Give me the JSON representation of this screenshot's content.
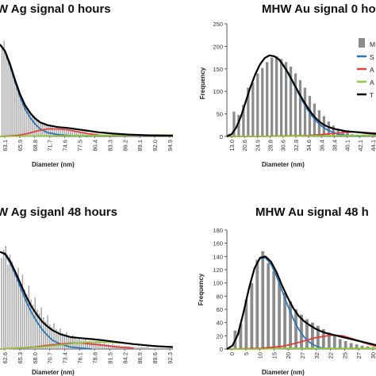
{
  "chart_data": [
    {
      "type": "bar",
      "title": "W Ag signal 0 hours",
      "xlabel": "Diameter (nm)",
      "ylabel": "",
      "ylim": [
        0,
        120
      ],
      "ticks": [
        "63.1",
        "65.9",
        "68.8",
        "71.7",
        "74.6",
        "77.5",
        "80.4",
        "83.3",
        "86.2",
        "89.1",
        "92.0",
        "94.9"
      ],
      "x": [
        60.9,
        61.3,
        61.7,
        62.1,
        62.5,
        62.9,
        63.3,
        63.7,
        64.1,
        64.5,
        64.9,
        65.3,
        65.7,
        66.1,
        66.5,
        66.9,
        67.3,
        67.7,
        68.1,
        68.5,
        68.9,
        69.3,
        69.7,
        70.1,
        70.5,
        70.9,
        71.3,
        71.7,
        72.1,
        72.5,
        72.9,
        73.3,
        73.7,
        74.1,
        74.5,
        74.9,
        75.3,
        75.7,
        76.1,
        76.5,
        76.9,
        77.3,
        77.7,
        78.1,
        78.5,
        78.9,
        79.3,
        79.7,
        80.1,
        80.5,
        80.9,
        81.3,
        81.7,
        82.1,
        82.5,
        82.9,
        83.3,
        83.7,
        84.1,
        84.5,
        84.9,
        85.3,
        85.7,
        86.1,
        86.5,
        86.9,
        87.3,
        87.7,
        88.1,
        88.5,
        88.9,
        89.3,
        89.7,
        90.1,
        90.5,
        90.9,
        91.3,
        91.7,
        92.1,
        92.5,
        92.9,
        93.3,
        93.7,
        94.1,
        94.5
      ],
      "series": [
        {
          "type": "bar",
          "color": "#a3a3a3",
          "values": [
            96,
            102,
            88,
            80,
            76,
            68,
            60,
            55,
            50,
            45,
            40,
            36,
            33,
            30,
            27,
            24,
            22,
            20,
            18,
            16,
            15,
            14,
            13,
            12,
            11,
            10,
            9,
            9,
            8,
            8,
            7,
            7,
            6,
            6,
            6,
            5,
            5,
            5,
            4,
            4,
            4,
            4,
            3,
            3,
            3,
            3,
            3,
            3,
            2,
            2,
            2,
            2,
            2,
            2,
            2,
            2,
            2,
            2,
            1,
            1,
            1,
            1,
            1,
            1,
            1,
            1,
            1,
            1,
            1,
            1,
            1,
            1,
            1,
            1,
            1,
            1,
            1,
            1,
            1,
            1,
            1,
            1,
            1,
            1,
            1
          ]
        },
        {
          "type": "line",
          "color": "#2e75b6",
          "x": [
            60.5,
            61.5,
            62.5,
            63.5,
            64.5,
            65.5,
            66.5,
            67.5,
            68.5,
            70,
            72,
            74,
            76,
            78
          ],
          "values": [
            98,
            90,
            75,
            58,
            42,
            29,
            20,
            13,
            8,
            4,
            2,
            1,
            0.5,
            0
          ]
        },
        {
          "type": "line",
          "color": "#e04040",
          "x": [
            60.5,
            64,
            66,
            68,
            70,
            72,
            74,
            76,
            78,
            80,
            82
          ],
          "values": [
            0,
            1,
            3,
            6,
            8,
            8,
            7,
            5,
            3,
            1.5,
            0.5
          ]
        },
        {
          "type": "line",
          "color": "#8dc63f",
          "x": [
            60.5,
            70,
            80,
            90,
            94.9
          ],
          "values": [
            0,
            0.5,
            1,
            1.5,
            1.5
          ]
        },
        {
          "type": "line",
          "color": "#000000",
          "x": [
            60.5,
            61.5,
            62.5,
            63.5,
            64.5,
            65.5,
            66.5,
            67.5,
            68.5,
            70,
            72,
            74,
            76,
            78,
            80,
            83,
            86,
            90,
            94.9
          ],
          "values": [
            98,
            91,
            77,
            60,
            45,
            33,
            25,
            19,
            15,
            12,
            10,
            9,
            7.5,
            6,
            4.5,
            3,
            2,
            1.2,
            0.8
          ]
        }
      ]
    },
    {
      "type": "bar",
      "title": "MHW Au signal 0 ho",
      "xlabel": "Diameter (nm)",
      "ylabel": "Frequency",
      "ylim": [
        0,
        250
      ],
      "yticks": [
        "0",
        "50",
        "100",
        "150",
        "200",
        "250"
      ],
      "ticks": [
        "13.0",
        "20.6",
        "24.9",
        "28.8",
        "30.6",
        "32.8",
        "34.6",
        "36.4",
        "38.4",
        "40.1",
        "42.1",
        "44.1"
      ],
      "x": [
        13.5,
        14.5,
        15.5,
        16.5,
        17.5,
        18.5,
        19.5,
        20.5,
        21.5,
        22.5,
        23.5,
        24.5,
        25.5,
        26.5,
        27.5,
        28.5,
        29.5,
        30.5,
        31.5,
        32.5,
        33.5,
        34.5,
        35.5,
        36.5,
        37.5,
        38.5,
        39.5,
        40.5,
        41.5,
        42.5,
        43.5
      ],
      "series": [
        {
          "name": "M",
          "type": "bar",
          "color": "#8c8c8c",
          "values": [
            6,
            55,
            48,
            70,
            108,
            120,
            140,
            152,
            165,
            175,
            178,
            172,
            165,
            155,
            140,
            125,
            108,
            90,
            73,
            58,
            45,
            33,
            24,
            17,
            12,
            8,
            5,
            4,
            3,
            2,
            1
          ]
        },
        {
          "name": "S",
          "type": "line",
          "color": "#2e75b6",
          "x": [
            13,
            14,
            15,
            16,
            17,
            18,
            19,
            20,
            21,
            22,
            23,
            24,
            25,
            26,
            27,
            28,
            29,
            30,
            31,
            32,
            33,
            34,
            35,
            36,
            37,
            38,
            39,
            40,
            41
          ],
          "values": [
            0,
            5,
            20,
            45,
            78,
            110,
            138,
            160,
            174,
            180,
            178,
            170,
            156,
            138,
            118,
            98,
            78,
            60,
            45,
            33,
            23,
            16,
            11,
            7,
            4,
            3,
            2,
            1,
            0
          ]
        },
        {
          "name": "A",
          "type": "line",
          "color": "#e04040",
          "x": [
            13,
            20,
            25,
            30,
            33,
            36,
            38,
            40,
            42,
            44.5
          ],
          "values": [
            0,
            0,
            1,
            2,
            4,
            7,
            9,
            10,
            9,
            7
          ]
        },
        {
          "name": "A",
          "type": "line",
          "color": "#8dc63f",
          "x": [
            13,
            20,
            30,
            40,
            44.5
          ],
          "values": [
            0,
            0,
            1,
            2,
            3
          ]
        },
        {
          "name": "T",
          "type": "line",
          "color": "#000000",
          "x": [
            13,
            14,
            15,
            16,
            17,
            18,
            19,
            20,
            21,
            22,
            23,
            24,
            25,
            26,
            27,
            28,
            29,
            30,
            31,
            32,
            33,
            34,
            35,
            36,
            37,
            38,
            39,
            40,
            41,
            42,
            43,
            44.5
          ],
          "values": [
            0,
            5,
            20,
            45,
            78,
            110,
            138,
            160,
            174,
            180,
            178,
            171,
            157,
            140,
            120,
            101,
            82,
            65,
            50,
            38,
            29,
            23,
            19,
            16,
            14,
            12,
            11,
            10,
            9,
            8,
            7,
            6
          ]
        }
      ]
    },
    {
      "type": "bar",
      "title": "W Ag siganl 48 hours",
      "xlabel": "Diameter (nm)",
      "ylabel": "",
      "ylim": [
        0,
        120
      ],
      "ticks": [
        "62.6",
        "65.3",
        "68.0",
        "70.7",
        "73.4",
        "76.1",
        "78.8",
        "81.5",
        "84.2",
        "86.9",
        "89.6",
        "92.3"
      ],
      "x": [
        60.8,
        61.2,
        61.6,
        62.0,
        62.4,
        62.8,
        63.2,
        63.6,
        64.0,
        64.4,
        64.8,
        65.2,
        65.6,
        66.0,
        66.4,
        66.8,
        67.2,
        67.6,
        68.0,
        68.4,
        68.8,
        69.2,
        69.6,
        70.0,
        70.4,
        70.8,
        71.2,
        71.6,
        72.0,
        72.4,
        72.8,
        73.2,
        73.6,
        74.0,
        74.4,
        74.8,
        75.2,
        75.6,
        76.0,
        76.4,
        76.8,
        77.2,
        77.6,
        78.0,
        78.4,
        78.8,
        79.2,
        79.6,
        80.0,
        80.4,
        80.8,
        81.2,
        81.6,
        82.0,
        82.4,
        82.8,
        83.2,
        83.6,
        84.0,
        84.4,
        84.8,
        85.2,
        85.6,
        86.0,
        86.4,
        86.8,
        87.2,
        87.6,
        88.0,
        88.4,
        88.8,
        89.2,
        89.6,
        90.0,
        90.4,
        90.8,
        91.2,
        91.6,
        92.0,
        92.4,
        92.8,
        93.2
      ],
      "series": [
        {
          "type": "bar",
          "color": "#a3a3a3",
          "values": [
            92,
            100,
            104,
            85,
            95,
            88,
            78,
            70,
            82,
            65,
            75,
            60,
            55,
            64,
            50,
            45,
            52,
            40,
            36,
            42,
            32,
            28,
            34,
            25,
            22,
            26,
            20,
            18,
            21,
            16,
            15,
            17,
            13,
            12,
            14,
            11,
            10,
            12,
            9,
            9,
            10,
            8,
            8,
            7,
            7,
            8,
            6,
            6,
            5,
            6,
            5,
            5,
            4,
            5,
            4,
            4,
            4,
            3,
            3,
            3,
            3,
            3,
            2,
            2,
            2,
            2,
            2,
            2,
            2,
            2,
            2,
            1,
            1,
            1,
            1,
            1,
            1,
            1,
            1,
            1,
            1,
            1
          ]
        },
        {
          "type": "line",
          "color": "#2e75b6",
          "x": [
            60.5,
            61.5,
            62.5,
            63.5,
            64.5,
            65.5,
            66.5,
            67.5,
            68.5,
            69.5,
            70.5,
            72,
            74,
            76,
            78
          ],
          "values": [
            98,
            95,
            86,
            74,
            61,
            48,
            37,
            28,
            20,
            14,
            9,
            5,
            2,
            1,
            0
          ]
        },
        {
          "type": "line",
          "color": "#e04040",
          "x": [
            60.5,
            64,
            67,
            70,
            72,
            74,
            76,
            78,
            80,
            83,
            86
          ],
          "values": [
            0,
            1,
            2,
            4,
            5,
            6,
            6,
            5,
            4,
            2,
            1
          ]
        },
        {
          "type": "line",
          "color": "#8dc63f",
          "x": [
            60.5,
            68,
            72,
            75,
            78,
            81,
            84,
            88,
            93.5
          ],
          "values": [
            0,
            2,
            4,
            6,
            7,
            7,
            6,
            4,
            2
          ]
        },
        {
          "type": "line",
          "color": "#000000",
          "x": [
            60.5,
            61.5,
            62.5,
            63.5,
            64.5,
            65.5,
            66.5,
            67.5,
            68.5,
            69.5,
            70.5,
            72,
            74,
            76,
            78,
            80,
            83,
            86,
            90,
            93.5
          ],
          "values": [
            98,
            96,
            88,
            77,
            65,
            53,
            43,
            35,
            28,
            23,
            19,
            15,
            12,
            11,
            10,
            9,
            7,
            5,
            3,
            2
          ]
        }
      ]
    },
    {
      "type": "bar",
      "title": "MHW Au signal 48 h",
      "xlabel": "Diameter (nm)",
      "ylabel": "Frequency",
      "ylim": [
        0,
        180
      ],
      "yticks": [
        "0",
        "20",
        "40",
        "60",
        "80",
        "100",
        "120",
        "140",
        "160",
        "180"
      ],
      "ticks": [
        "0",
        "5",
        "10",
        "15",
        "20",
        "27",
        "32",
        "22",
        "25",
        "27",
        "30"
      ],
      "x": [
        5.5,
        6.5,
        7.5,
        8.5,
        9.5,
        10.5,
        11.5,
        12.5,
        13.5,
        14.5,
        15.5,
        16.5,
        17.5,
        18.5,
        19.5,
        20.5,
        21.5,
        22.5,
        23.5,
        24.5,
        25.5,
        26.5,
        27.5,
        28.5,
        29.5,
        30.5
      ],
      "series": [
        {
          "type": "bar",
          "color": "#8c8c8c",
          "values": [
            28,
            38,
            75,
            100,
            135,
            148,
            130,
            118,
            100,
            85,
            72,
            60,
            52,
            45,
            40,
            35,
            30,
            25,
            20,
            15,
            12,
            9,
            7,
            5,
            4,
            3
          ]
        },
        {
          "type": "line",
          "color": "#2e75b6",
          "x": [
            4,
            5,
            6,
            7,
            8,
            9,
            10,
            11,
            12,
            13,
            14,
            15,
            16,
            17,
            18,
            19,
            20,
            21,
            22
          ],
          "values": [
            0,
            5,
            22,
            55,
            92,
            122,
            137,
            138,
            128,
            110,
            88,
            66,
            46,
            30,
            18,
            10,
            5,
            2,
            0
          ]
        },
        {
          "type": "line",
          "color": "#e04040",
          "x": [
            4,
            10,
            14,
            17,
            20,
            23,
            25,
            27,
            29,
            31
          ],
          "values": [
            0,
            1,
            4,
            10,
            17,
            21,
            20,
            15,
            9,
            4
          ]
        },
        {
          "type": "line",
          "color": "#8dc63f",
          "x": [
            4,
            10,
            15,
            20,
            25,
            31
          ],
          "values": [
            0,
            0,
            1,
            1,
            1,
            1
          ]
        },
        {
          "type": "line",
          "color": "#000000",
          "x": [
            4,
            5,
            6,
            7,
            8,
            9,
            10,
            11,
            12,
            13,
            14,
            15,
            16,
            17,
            18,
            19,
            20,
            21,
            22,
            23,
            24,
            25,
            26,
            27,
            28,
            29,
            30,
            31
          ],
          "values": [
            0,
            5,
            22,
            55,
            92,
            122,
            138,
            140,
            132,
            116,
            96,
            78,
            62,
            50,
            42,
            36,
            31,
            27,
            24,
            22,
            20,
            18,
            16,
            14,
            12,
            10,
            8,
            6
          ]
        }
      ]
    }
  ]
}
